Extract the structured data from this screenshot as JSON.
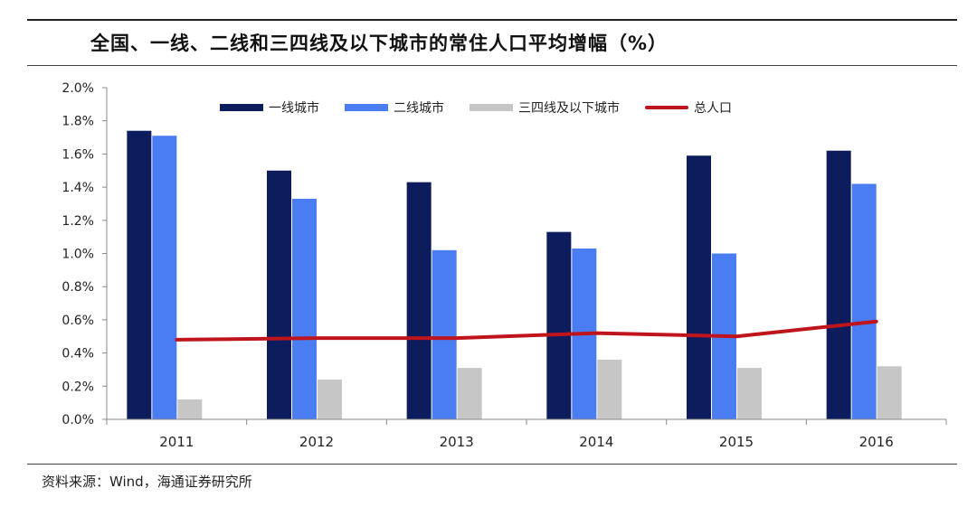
{
  "title": "全国、一线、二线和三四线及以下城市的常住人口平均增幅（%）",
  "source": "资料来源：Wind，海通证券研究所",
  "chart_data": {
    "type": "bar",
    "title": "全国、一线、二线和三四线及以下城市的常住人口平均增幅（%）",
    "categories": [
      "2011",
      "2012",
      "2013",
      "2014",
      "2015",
      "2016"
    ],
    "ylim": [
      0,
      2.0
    ],
    "yticks": [
      "0.0%",
      "0.2%",
      "0.4%",
      "0.6%",
      "0.8%",
      "1.0%",
      "1.2%",
      "1.4%",
      "1.6%",
      "1.8%",
      "2.0%"
    ],
    "legend_position": "top",
    "grid": false,
    "series": [
      {
        "name": "一线城市",
        "type": "bar",
        "color": "#0d1c5c",
        "values": [
          1.74,
          1.5,
          1.43,
          1.13,
          1.59,
          1.62
        ]
      },
      {
        "name": "二线城市",
        "type": "bar",
        "color": "#4a7df2",
        "values": [
          1.71,
          1.33,
          1.02,
          1.03,
          1.0,
          1.42
        ]
      },
      {
        "name": "三四线及以下城市",
        "type": "bar",
        "color": "#c6c6c6",
        "values": [
          0.12,
          0.24,
          0.31,
          0.36,
          0.31,
          0.32
        ]
      },
      {
        "name": "总人口",
        "type": "line",
        "color": "#c0141c",
        "values": [
          0.48,
          0.49,
          0.49,
          0.52,
          0.5,
          0.59
        ]
      }
    ]
  }
}
